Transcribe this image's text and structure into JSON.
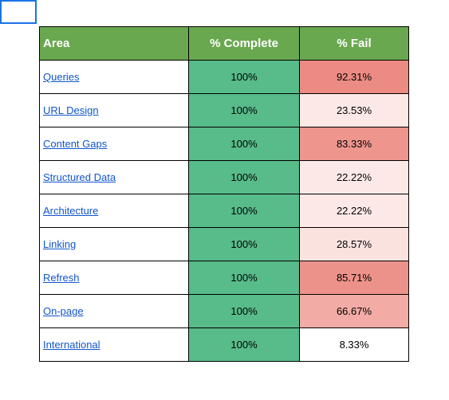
{
  "sheet": {
    "headers": {
      "area": "Area",
      "complete": "% Complete",
      "fail": "% Fail"
    },
    "colors": {
      "header_bg": "#6aa84f",
      "complete_bg": "#57bb8a",
      "link": "#1155cc"
    },
    "rows": [
      {
        "area": "Queries",
        "complete": "100%",
        "fail": "92.31%",
        "fail_bg": "#ec8b83"
      },
      {
        "area": "URL Design",
        "complete": "100%",
        "fail": "23.53%",
        "fail_bg": "#fce8e6"
      },
      {
        "area": "Content Gaps",
        "complete": "100%",
        "fail": "83.33%",
        "fail_bg": "#ee958e"
      },
      {
        "area": "Structured Data",
        "complete": "100%",
        "fail": "22.22%",
        "fail_bg": "#fce9e7"
      },
      {
        "area": "Architecture",
        "complete": "100%",
        "fail": "22.22%",
        "fail_bg": "#fce9e7"
      },
      {
        "area": "Linking",
        "complete": "100%",
        "fail": "28.57%",
        "fail_bg": "#fae2df"
      },
      {
        "area": "Refresh",
        "complete": "100%",
        "fail": "85.71%",
        "fail_bg": "#ed928a"
      },
      {
        "area": "On-page",
        "complete": "100%",
        "fail": "66.67%",
        "fail_bg": "#f2aba5"
      },
      {
        "area": "International",
        "complete": "100%",
        "fail": "8.33%",
        "fail_bg": "#ffffff"
      }
    ]
  }
}
